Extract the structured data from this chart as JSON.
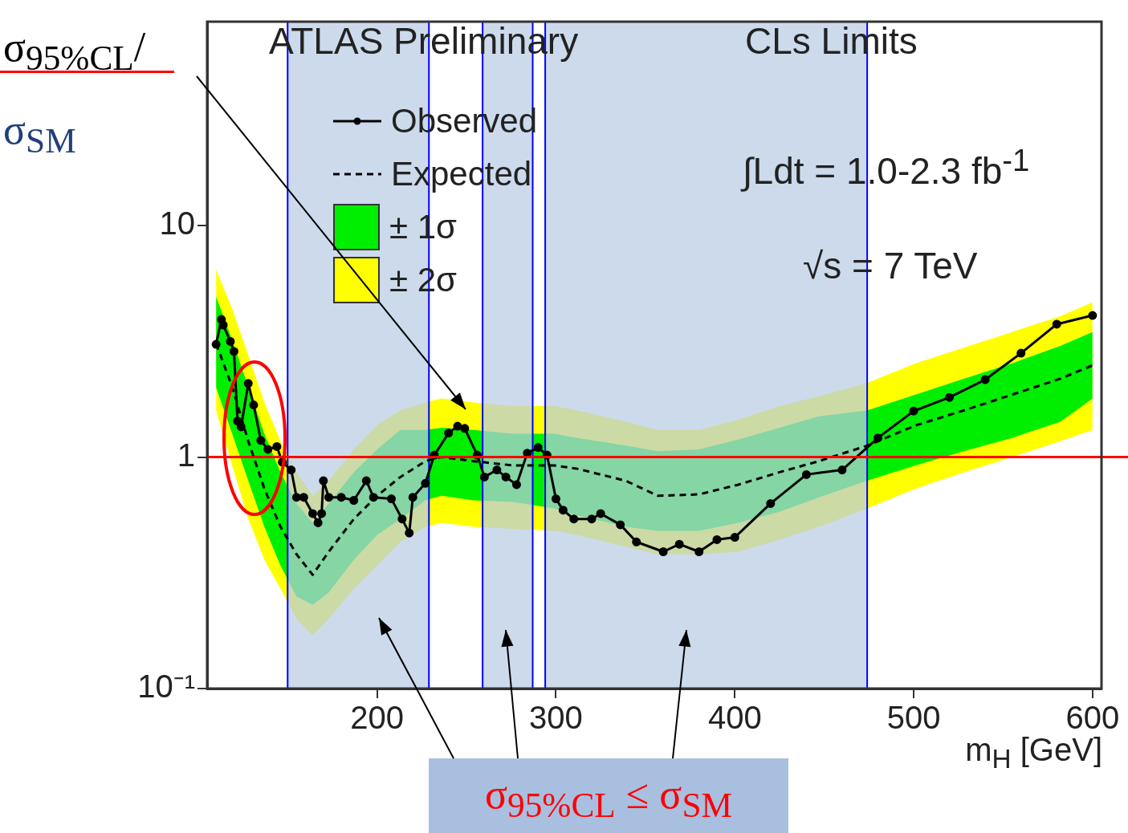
{
  "chart_data": {
    "type": "line",
    "xlabel": "m$_{H}$ [GeV]",
    "ylabel": "σ$_{95%CL}$/σ$_{SM}$",
    "xlim": [
      105,
      605
    ],
    "xticks": [
      200,
      300,
      400,
      500,
      600
    ],
    "ylim": [
      0.1,
      76
    ],
    "yticks": [
      {
        "value": 0.1,
        "label": "10⁻¹"
      },
      1,
      10
    ],
    "log": "y",
    "grid": false,
    "legend": "top left",
    "series": [
      {
        "name": "± 2σ",
        "type": "area",
        "color": "#ffff00",
        "x": [
          110,
          119,
          128,
          137,
          146,
          155,
          164,
          173,
          187,
          200,
          213,
          227,
          236,
          254,
          276,
          299,
          312,
          339,
          357,
          380,
          402,
          425,
          447,
          474,
          501,
          528,
          555,
          582,
          600
        ],
        "values": [
          null,
          null,
          null,
          null,
          null,
          null,
          null,
          null,
          null,
          null,
          null,
          null,
          null,
          null,
          null,
          null,
          null,
          null,
          null,
          null,
          null,
          null,
          null,
          null,
          null,
          null,
          null,
          null,
          null
        ],
        "lower": [
          1.59,
          0.92,
          0.54,
          0.36,
          0.27,
          0.2,
          0.17,
          0.2,
          0.27,
          0.34,
          0.43,
          0.5,
          0.52,
          0.5,
          0.49,
          0.48,
          0.46,
          0.41,
          0.38,
          0.38,
          0.39,
          0.44,
          0.5,
          0.6,
          0.73,
          0.86,
          1.0,
          1.17,
          1.31
        ],
        "upper": [
          6.47,
          4.38,
          2.75,
          1.72,
          1.17,
          0.86,
          0.68,
          0.79,
          1.08,
          1.37,
          1.59,
          1.72,
          1.79,
          1.72,
          1.66,
          1.66,
          1.59,
          1.42,
          1.31,
          1.31,
          1.45,
          1.66,
          1.83,
          2.09,
          2.54,
          2.97,
          3.47,
          4.06,
          4.66
        ]
      },
      {
        "name": "± 1σ",
        "type": "area",
        "color": "#00ee00",
        "x": [
          110,
          119,
          128,
          137,
          146,
          155,
          164,
          173,
          187,
          200,
          213,
          227,
          236,
          254,
          276,
          299,
          312,
          339,
          357,
          380,
          402,
          425,
          447,
          474,
          501,
          528,
          555,
          582,
          600
        ],
        "values": [
          null,
          null,
          null,
          null,
          null,
          null,
          null,
          null,
          null,
          null,
          null,
          null,
          null,
          null,
          null,
          null,
          null,
          null,
          null,
          null,
          null,
          null,
          null,
          null,
          null,
          null,
          null,
          null,
          null
        ],
        "lower": [
          2.0,
          1.26,
          0.79,
          0.5,
          0.34,
          0.25,
          0.23,
          0.26,
          0.36,
          0.46,
          0.54,
          0.65,
          0.68,
          0.65,
          0.64,
          0.6,
          0.56,
          0.5,
          0.48,
          0.48,
          0.52,
          0.58,
          0.67,
          0.79,
          0.92,
          1.06,
          1.21,
          1.42,
          1.79
        ],
        "upper": [
          4.93,
          3.21,
          2.01,
          1.26,
          0.86,
          0.63,
          0.52,
          0.63,
          0.86,
          1.08,
          1.31,
          1.31,
          1.34,
          1.31,
          1.26,
          1.26,
          1.21,
          1.12,
          1.06,
          1.08,
          1.19,
          1.34,
          1.5,
          1.59,
          1.86,
          2.18,
          2.54,
          3.02,
          3.47
        ]
      },
      {
        "name": "Expected",
        "type": "line",
        "color": "#000000",
        "line_style": "dashed",
        "marker": "none",
        "x": [
          110,
          119,
          128,
          137,
          146,
          155,
          164,
          173,
          187,
          200,
          213,
          227,
          236,
          254,
          276,
          299,
          312,
          339,
          357,
          380,
          402,
          425,
          447,
          474,
          501,
          528,
          555,
          582,
          600
        ],
        "values": [
          3.09,
          2.01,
          1.17,
          0.73,
          0.5,
          0.38,
          0.31,
          0.39,
          0.54,
          0.68,
          0.82,
          0.96,
          1.0,
          0.96,
          0.92,
          0.92,
          0.89,
          0.79,
          0.68,
          0.69,
          0.76,
          0.86,
          0.96,
          1.12,
          1.37,
          1.59,
          1.86,
          2.18,
          2.49
        ]
      },
      {
        "name": "Observed",
        "type": "line",
        "color": "#000000",
        "line_style": "solid",
        "marker": "circle",
        "x": [
          110,
          113,
          114,
          118,
          120,
          122,
          124,
          128,
          131,
          135,
          139,
          144,
          147,
          152,
          155,
          159,
          164,
          167,
          169,
          170,
          173,
          180,
          187,
          194,
          198,
          208,
          214,
          218,
          220,
          227,
          232,
          240,
          245,
          249,
          256,
          260,
          267,
          272,
          278,
          284,
          290,
          295,
          300,
          304,
          310,
          320,
          325,
          336,
          345,
          360,
          369,
          380,
          390,
          400,
          420,
          440,
          460,
          480,
          500,
          520,
          540,
          560,
          580,
          600
        ],
        "values": [
          3.07,
          3.93,
          3.72,
          3.16,
          2.86,
          1.43,
          1.35,
          2.08,
          1.68,
          1.18,
          1.08,
          1.11,
          0.95,
          0.88,
          0.67,
          0.67,
          0.57,
          0.52,
          0.57,
          0.79,
          0.67,
          0.67,
          0.65,
          0.79,
          0.67,
          0.66,
          0.54,
          0.47,
          0.67,
          0.77,
          1.02,
          1.27,
          1.36,
          1.33,
          1.02,
          0.82,
          0.88,
          0.82,
          0.76,
          1.04,
          1.1,
          1.02,
          0.66,
          0.59,
          0.54,
          0.54,
          0.57,
          0.51,
          0.43,
          0.39,
          0.42,
          0.39,
          0.44,
          0.45,
          0.63,
          0.84,
          0.88,
          1.21,
          1.58,
          1.81,
          2.16,
          2.81,
          3.75,
          4.09
        ]
      }
    ],
    "ref_lines": [
      {
        "axis": "y",
        "value": 1,
        "color": "#ff0000"
      }
    ],
    "bands": [
      {
        "axis": "x",
        "from": 150,
        "to": 229,
        "color": "#b8cce4"
      },
      {
        "axis": "x",
        "from": 259,
        "to": 287,
        "color": "#b8cce4"
      },
      {
        "axis": "x",
        "from": 294,
        "to": 474,
        "color": "#b8cce4"
      }
    ],
    "annotations": [
      "ATLAS Preliminary",
      "CLs Limits",
      "∫Ldt = 1.0-2.3 fb$^{-1}$",
      "√s = 7 TeV",
      "σ$_{95%CL}$ ≤ σ$_{SM}$"
    ]
  }
}
